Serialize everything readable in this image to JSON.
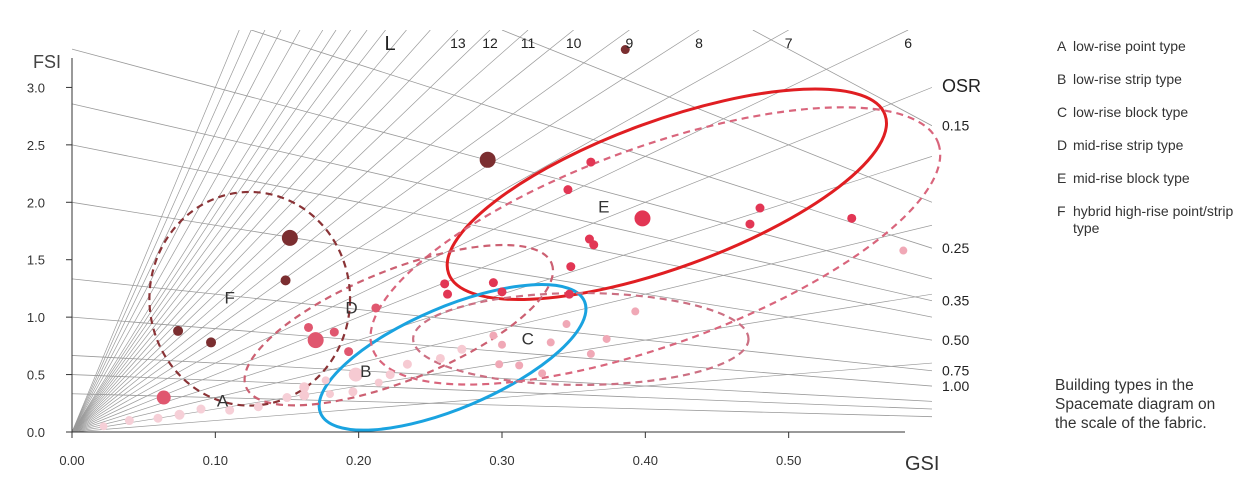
{
  "chart_data": {
    "type": "scatter",
    "title": "",
    "xlabel": "GSI",
    "ylabel": "FSI",
    "xlim": [
      0,
      0.6
    ],
    "ylim": [
      0,
      3.5
    ],
    "x_ticks": [
      "0.00",
      "0.10",
      "0.20",
      "0.30",
      "0.40",
      "0.50"
    ],
    "x_tick_values": [
      0,
      0.1,
      0.2,
      0.3,
      0.4,
      0.5
    ],
    "y_ticks": [
      "0.0",
      "0.5",
      "1.0",
      "1.5",
      "2.0",
      "2.5",
      "3.0"
    ],
    "y_tick_values": [
      0,
      0.5,
      1.0,
      1.5,
      2.0,
      2.5,
      3.0
    ],
    "grid": false,
    "l_label": "L",
    "l_lines": [
      {
        "label": "13",
        "value": 13
      },
      {
        "label": "12",
        "value": 12
      },
      {
        "label": "11",
        "value": 11
      },
      {
        "label": "10",
        "value": 10
      },
      {
        "label": "9",
        "value": 9
      },
      {
        "label": "8",
        "value": 8
      },
      {
        "label": "7",
        "value": 7
      },
      {
        "label": "6",
        "value": 6
      }
    ],
    "l_extra_values": [
      1,
      2,
      3,
      4,
      5,
      14,
      15,
      16,
      17,
      18,
      19,
      20,
      22,
      24,
      26,
      28,
      30
    ],
    "osr_label": "OSR",
    "osr_lines": [
      {
        "label": "0.15",
        "value": 0.15
      },
      {
        "label": "0.25",
        "value": 0.25
      },
      {
        "label": "0.35",
        "value": 0.35
      },
      {
        "label": "0.50",
        "value": 0.5
      },
      {
        "label": "0.75",
        "value": 0.75
      },
      {
        "label": "1.00",
        "value": 1.0
      }
    ],
    "osr_extra_values": [
      0.2,
      0.3,
      0.4,
      1.5,
      2.0,
      3.0
    ],
    "colors": {
      "F": "#7b2e30",
      "E": "#e23654",
      "D": "#e0576f",
      "C": "#f0a8b6",
      "B": "#f6cad2",
      "A": "#f6cfd7",
      "ellipse_E": "#e01e22",
      "ellipse_B": "#1aa3e0",
      "ellipse_dashed_E": "#d9657c",
      "ellipse_dashed_C": "#cc7083",
      "ellipse_dashed_D": "#cc6072",
      "ellipse_dashed_F": "#8a3336"
    },
    "regions": [
      {
        "label": "A",
        "x": 0.105,
        "y": 0.22
      },
      {
        "label": "B",
        "x": 0.205,
        "y": 0.48
      },
      {
        "label": "C",
        "x": 0.318,
        "y": 0.76
      },
      {
        "label": "D",
        "x": 0.195,
        "y": 1.03
      },
      {
        "label": "E",
        "x": 0.371,
        "y": 1.91
      },
      {
        "label": "F",
        "x": 0.11,
        "y": 1.12
      }
    ],
    "series": [
      {
        "type_key": "F",
        "points": [
          {
            "x": 0.386,
            "y": 3.33,
            "s": 9
          },
          {
            "x": 0.29,
            "y": 2.37,
            "s": 16
          },
          {
            "x": 0.152,
            "y": 1.69,
            "s": 16
          },
          {
            "x": 0.149,
            "y": 1.32,
            "s": 10
          },
          {
            "x": 0.074,
            "y": 0.88,
            "s": 10
          },
          {
            "x": 0.097,
            "y": 0.78,
            "s": 10
          }
        ]
      },
      {
        "type_key": "E",
        "points": [
          {
            "x": 0.362,
            "y": 2.35,
            "s": 9
          },
          {
            "x": 0.346,
            "y": 2.11,
            "s": 9
          },
          {
            "x": 0.398,
            "y": 1.86,
            "s": 16
          },
          {
            "x": 0.361,
            "y": 1.68,
            "s": 9
          },
          {
            "x": 0.364,
            "y": 1.63,
            "s": 9
          },
          {
            "x": 0.348,
            "y": 1.44,
            "s": 9
          },
          {
            "x": 0.48,
            "y": 1.95,
            "s": 9
          },
          {
            "x": 0.473,
            "y": 1.81,
            "s": 9
          },
          {
            "x": 0.544,
            "y": 1.86,
            "s": 9
          },
          {
            "x": 0.26,
            "y": 1.29,
            "s": 9
          },
          {
            "x": 0.262,
            "y": 1.2,
            "s": 9
          },
          {
            "x": 0.294,
            "y": 1.3,
            "s": 9
          },
          {
            "x": 0.3,
            "y": 1.22,
            "s": 9
          },
          {
            "x": 0.347,
            "y": 1.2,
            "s": 9
          }
        ]
      },
      {
        "type_key": "D",
        "points": [
          {
            "x": 0.212,
            "y": 1.08,
            "s": 9
          },
          {
            "x": 0.165,
            "y": 0.91,
            "s": 9
          },
          {
            "x": 0.183,
            "y": 0.87,
            "s": 9
          },
          {
            "x": 0.17,
            "y": 0.8,
            "s": 16
          },
          {
            "x": 0.193,
            "y": 0.7,
            "s": 9
          },
          {
            "x": 0.064,
            "y": 0.3,
            "s": 14
          }
        ]
      },
      {
        "type_key": "C",
        "points": [
          {
            "x": 0.345,
            "y": 0.94,
            "s": 8
          },
          {
            "x": 0.393,
            "y": 1.05,
            "s": 8
          },
          {
            "x": 0.294,
            "y": 0.84,
            "s": 8
          },
          {
            "x": 0.3,
            "y": 0.76,
            "s": 8
          },
          {
            "x": 0.334,
            "y": 0.78,
            "s": 8
          },
          {
            "x": 0.373,
            "y": 0.81,
            "s": 8
          },
          {
            "x": 0.362,
            "y": 0.68,
            "s": 8
          },
          {
            "x": 0.298,
            "y": 0.59,
            "s": 8
          },
          {
            "x": 0.312,
            "y": 0.58,
            "s": 8
          },
          {
            "x": 0.328,
            "y": 0.51,
            "s": 8
          },
          {
            "x": 0.58,
            "y": 1.58,
            "s": 8
          }
        ]
      },
      {
        "type_key": "B",
        "points": [
          {
            "x": 0.198,
            "y": 0.5,
            "s": 14
          },
          {
            "x": 0.222,
            "y": 0.5,
            "s": 9
          },
          {
            "x": 0.234,
            "y": 0.59,
            "s": 9
          },
          {
            "x": 0.257,
            "y": 0.64,
            "s": 9
          },
          {
            "x": 0.272,
            "y": 0.72,
            "s": 9
          },
          {
            "x": 0.196,
            "y": 0.35,
            "s": 9
          },
          {
            "x": 0.162,
            "y": 0.39,
            "s": 10
          },
          {
            "x": 0.162,
            "y": 0.32,
            "s": 10
          },
          {
            "x": 0.214,
            "y": 0.43,
            "s": 8
          },
          {
            "x": 0.177,
            "y": 0.45,
            "s": 8
          },
          {
            "x": 0.18,
            "y": 0.33,
            "s": 8
          }
        ]
      },
      {
        "type_key": "A",
        "points": [
          {
            "x": 0.04,
            "y": 0.1,
            "s": 9
          },
          {
            "x": 0.06,
            "y": 0.12,
            "s": 9
          },
          {
            "x": 0.075,
            "y": 0.15,
            "s": 10
          },
          {
            "x": 0.09,
            "y": 0.2,
            "s": 9
          },
          {
            "x": 0.13,
            "y": 0.22,
            "s": 9
          },
          {
            "x": 0.11,
            "y": 0.19,
            "s": 9
          },
          {
            "x": 0.15,
            "y": 0.3,
            "s": 9
          },
          {
            "x": 0.022,
            "y": 0.05,
            "s": 8
          }
        ]
      }
    ],
    "ellipses": [
      {
        "name": "ellipse-mid-rise-block-solid",
        "style": "solid",
        "color_key": "ellipse_E",
        "cx": 0.415,
        "cy": 2.07,
        "rx": 0.162,
        "ry": 0.64,
        "rot": -20
      },
      {
        "name": "ellipse-low-rise-strip-solid",
        "style": "solid",
        "color_key": "ellipse_B",
        "cx": 0.2655,
        "cy": 0.65,
        "rx": 0.1,
        "ry": 0.44,
        "rot": -23
      },
      {
        "name": "ellipse-mid-rise-block-dashed",
        "style": "dashed",
        "color_key": "ellipse_dashed_E",
        "cx": 0.407,
        "cy": 1.62,
        "rx": 0.21,
        "ry": 0.86,
        "rot": -20
      },
      {
        "name": "ellipse-low-rise-block-dashed",
        "style": "dashed",
        "color_key": "ellipse_dashed_C",
        "cx": 0.355,
        "cy": 0.81,
        "rx": 0.117,
        "ry": 0.4,
        "rot": 0
      },
      {
        "name": "ellipse-mid-rise-strip-dashed",
        "style": "dashed",
        "color_key": "ellipse_dashed_D",
        "cx": 0.228,
        "cy": 0.93,
        "rx": 0.115,
        "ry": 0.48,
        "rot": -22
      },
      {
        "name": "ellipse-hybrid-dashed",
        "style": "dashed",
        "color_key": "ellipse_dashed_F",
        "cx": 0.124,
        "cy": 1.16,
        "rx": 0.07,
        "ry": 0.93,
        "rot": 0
      }
    ],
    "legend": [
      {
        "key": "A",
        "text": "low-rise point type"
      },
      {
        "key": "B",
        "text": "low-rise strip type"
      },
      {
        "key": "C",
        "text": "low-rise block type"
      },
      {
        "key": "D",
        "text": "mid-rise strip type"
      },
      {
        "key": "E",
        "text": "mid-rise block type"
      },
      {
        "key": "F",
        "text": "hybrid high-rise point/strip type"
      }
    ],
    "legend_position": "right",
    "caption": "Building types in the Spacemate diagram on the scale of the fabric."
  }
}
